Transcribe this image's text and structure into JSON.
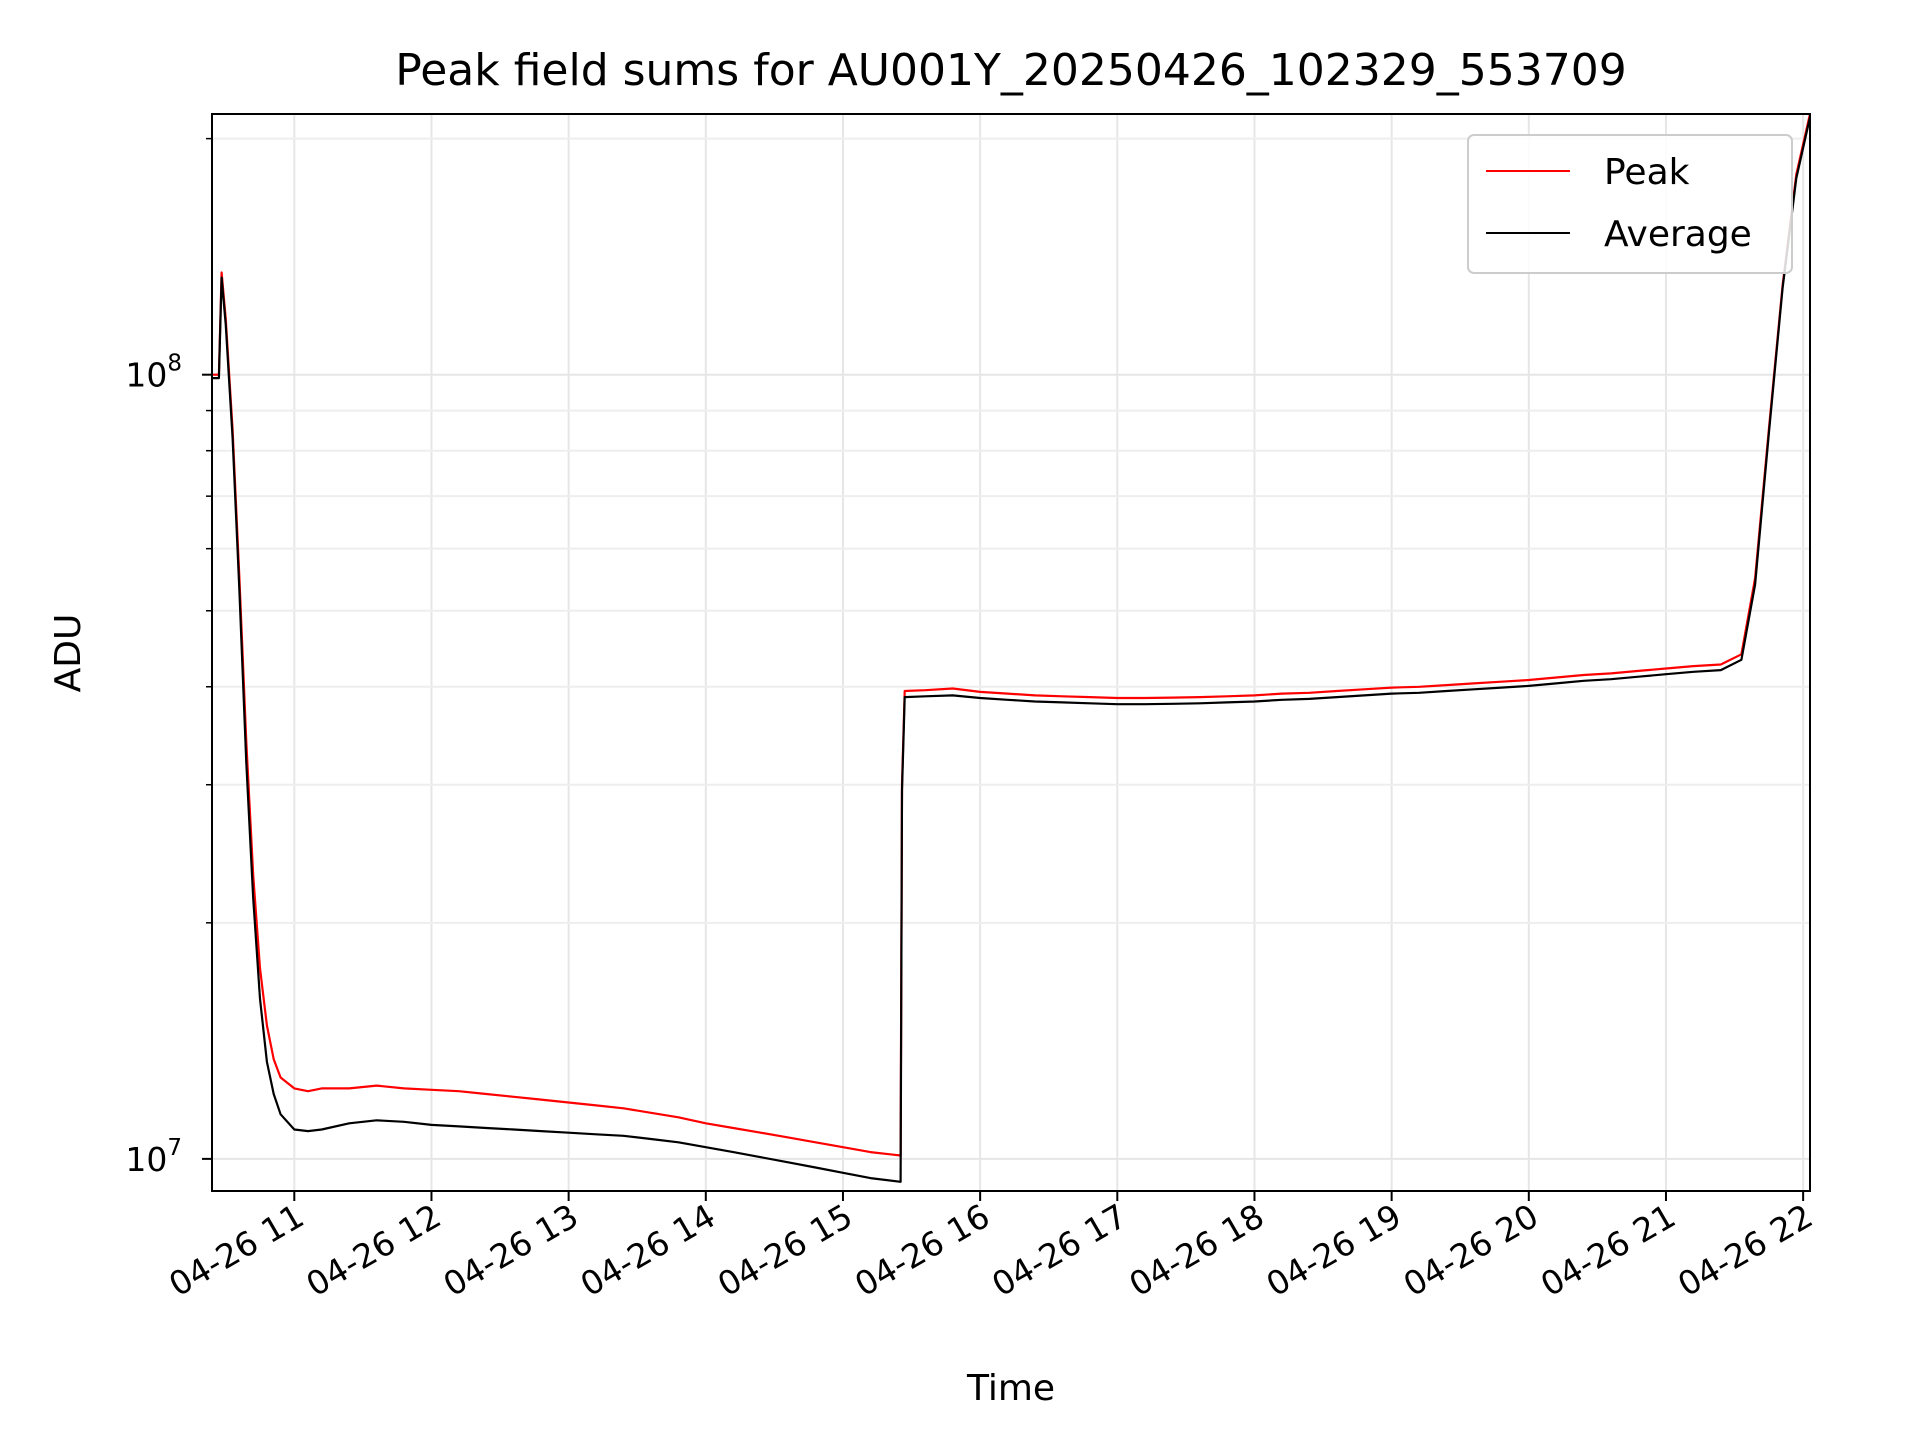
{
  "chart_data": {
    "type": "line",
    "title": "Peak field sums for AU001Y_20250426_102329_553709",
    "xlabel": "Time",
    "ylabel": "ADU",
    "yscale": "log",
    "ylim": [
      9100000,
      215000000
    ],
    "xlim": [
      10.4,
      22.05
    ],
    "grid": true,
    "x_ticks": [
      {
        "value": 11,
        "label": "04-26 11"
      },
      {
        "value": 12,
        "label": "04-26 12"
      },
      {
        "value": 13,
        "label": "04-26 13"
      },
      {
        "value": 14,
        "label": "04-26 14"
      },
      {
        "value": 15,
        "label": "04-26 15"
      },
      {
        "value": 16,
        "label": "04-26 16"
      },
      {
        "value": 17,
        "label": "04-26 17"
      },
      {
        "value": 18,
        "label": "04-26 18"
      },
      {
        "value": 19,
        "label": "04-26 19"
      },
      {
        "value": 20,
        "label": "04-26 20"
      },
      {
        "value": 21,
        "label": "04-26 21"
      },
      {
        "value": 22,
        "label": "04-26 22"
      }
    ],
    "y_major_ticks": [
      {
        "value": 10000000,
        "base": "10",
        "exp": "7"
      },
      {
        "value": 100000000,
        "base": "10",
        "exp": "8"
      }
    ],
    "y_minor_ticks": [
      20000000,
      30000000,
      40000000,
      50000000,
      60000000,
      70000000,
      80000000,
      90000000,
      200000000
    ],
    "legend": {
      "position": "upper right"
    },
    "series": [
      {
        "name": "Peak",
        "color": "#ff0000",
        "x": [
          10.4,
          10.45,
          10.47,
          10.5,
          10.55,
          10.6,
          10.65,
          10.7,
          10.75,
          10.8,
          10.85,
          10.9,
          11.0,
          11.1,
          11.2,
          11.4,
          11.6,
          11.8,
          12.0,
          12.2,
          12.4,
          12.6,
          12.8,
          13.0,
          13.2,
          13.4,
          13.6,
          13.8,
          14.0,
          14.2,
          14.4,
          14.6,
          14.8,
          15.0,
          15.2,
          15.42,
          15.43,
          15.45,
          15.6,
          15.8,
          16.0,
          16.2,
          16.4,
          16.6,
          16.8,
          17.0,
          17.2,
          17.4,
          17.6,
          17.8,
          18.0,
          18.2,
          18.4,
          18.6,
          18.8,
          19.0,
          19.2,
          19.4,
          19.6,
          19.8,
          20.0,
          20.2,
          20.4,
          20.6,
          20.8,
          21.0,
          21.2,
          21.4,
          21.55,
          21.65,
          21.75,
          21.85,
          21.95,
          22.05
        ],
        "values": [
          100000000,
          100000000,
          135000000,
          118000000,
          85000000,
          55000000,
          34000000,
          23000000,
          17500000,
          14800000,
          13400000,
          12700000,
          12300000,
          12200000,
          12300000,
          12300000,
          12400000,
          12300000,
          12250000,
          12200000,
          12100000,
          12000000,
          11900000,
          11800000,
          11700000,
          11600000,
          11450000,
          11300000,
          11100000,
          10950000,
          10800000,
          10650000,
          10500000,
          10350000,
          10200000,
          10100000,
          30000000,
          39500000,
          39600000,
          39800000,
          39400000,
          39200000,
          39000000,
          38900000,
          38800000,
          38700000,
          38700000,
          38750000,
          38800000,
          38900000,
          39000000,
          39200000,
          39300000,
          39500000,
          39700000,
          39900000,
          40000000,
          40200000,
          40400000,
          40600000,
          40800000,
          41100000,
          41400000,
          41600000,
          41900000,
          42200000,
          42500000,
          42700000,
          44000000,
          55000000,
          85000000,
          130000000,
          180000000,
          215000000
        ]
      },
      {
        "name": "Average",
        "color": "#000000",
        "x": [
          10.4,
          10.45,
          10.47,
          10.5,
          10.55,
          10.6,
          10.65,
          10.7,
          10.75,
          10.8,
          10.85,
          10.9,
          11.0,
          11.1,
          11.2,
          11.4,
          11.6,
          11.8,
          12.0,
          12.2,
          12.4,
          12.6,
          12.8,
          13.0,
          13.2,
          13.4,
          13.6,
          13.8,
          14.0,
          14.2,
          14.4,
          14.6,
          14.8,
          15.0,
          15.2,
          15.42,
          15.43,
          15.45,
          15.6,
          15.8,
          16.0,
          16.2,
          16.4,
          16.6,
          16.8,
          17.0,
          17.2,
          17.4,
          17.6,
          17.8,
          18.0,
          18.2,
          18.4,
          18.6,
          18.8,
          19.0,
          19.2,
          19.4,
          19.6,
          19.8,
          20.0,
          20.2,
          20.4,
          20.6,
          20.8,
          21.0,
          21.2,
          21.4,
          21.55,
          21.65,
          21.75,
          21.85,
          21.95,
          22.05
        ],
        "values": [
          99000000,
          99000000,
          133000000,
          116000000,
          83000000,
          53000000,
          32000000,
          21500000,
          16000000,
          13300000,
          12100000,
          11400000,
          10900000,
          10850000,
          10900000,
          11100000,
          11200000,
          11150000,
          11050000,
          11000000,
          10950000,
          10900000,
          10850000,
          10800000,
          10750000,
          10700000,
          10600000,
          10500000,
          10350000,
          10200000,
          10050000,
          9900000,
          9750000,
          9600000,
          9450000,
          9350000,
          29500000,
          38800000,
          38900000,
          39000000,
          38700000,
          38500000,
          38300000,
          38200000,
          38100000,
          38000000,
          38000000,
          38050000,
          38100000,
          38200000,
          38300000,
          38500000,
          38600000,
          38800000,
          39000000,
          39200000,
          39300000,
          39500000,
          39700000,
          39900000,
          40100000,
          40400000,
          40700000,
          40900000,
          41200000,
          41500000,
          41800000,
          42000000,
          43300000,
          54000000,
          84000000,
          129000000,
          178000000,
          213000000
        ]
      }
    ]
  }
}
